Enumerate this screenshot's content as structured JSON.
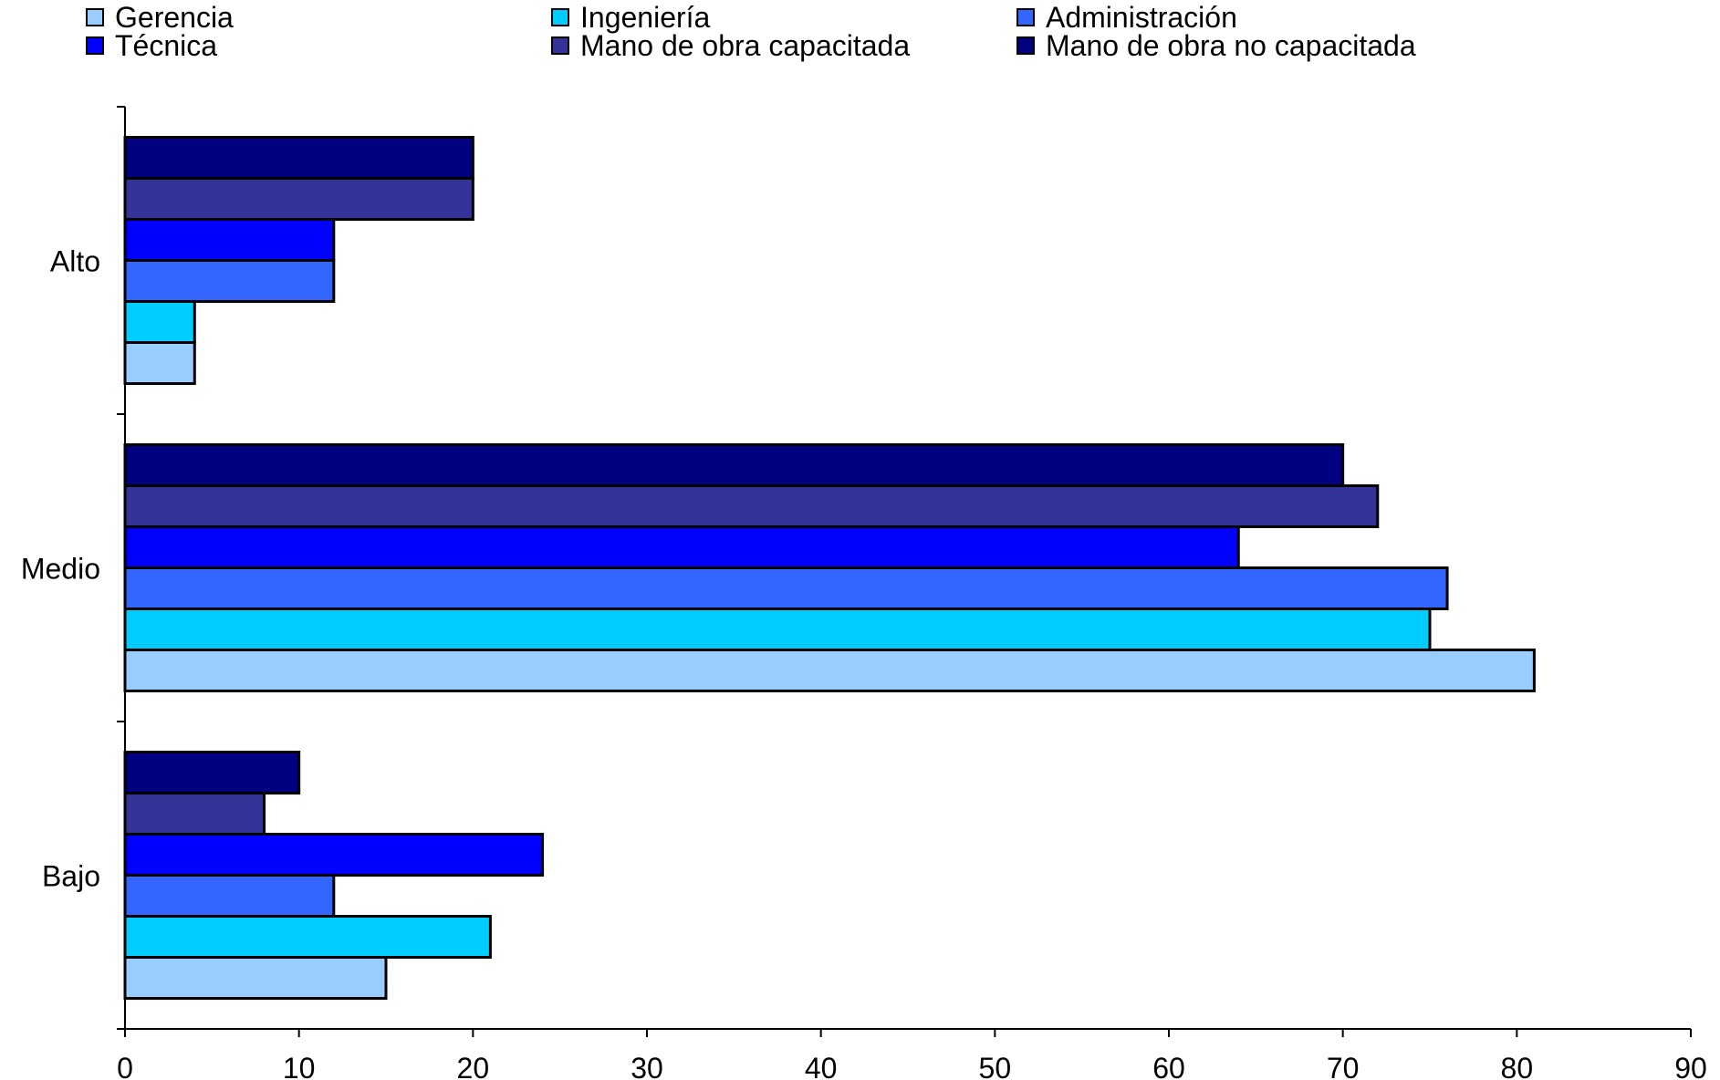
{
  "chart_data": {
    "type": "bar",
    "orientation": "horizontal",
    "title": "",
    "xlabel": "",
    "ylabel": "",
    "categories": [
      "Alto",
      "Medio",
      "Bajo"
    ],
    "series": [
      {
        "name": "Gerencia",
        "color": "#99CCFF",
        "values": [
          4,
          81,
          15
        ]
      },
      {
        "name": "Ingeniería",
        "color": "#00CCFF",
        "values": [
          4,
          75,
          21
        ]
      },
      {
        "name": "Administración",
        "color": "#3366FF",
        "values": [
          12,
          76,
          12
        ]
      },
      {
        "name": "Técnica",
        "color": "#0000FF",
        "values": [
          12,
          64,
          24
        ]
      },
      {
        "name": "Mano de obra capacitada",
        "color": "#333399",
        "values": [
          20,
          72,
          8
        ]
      },
      {
        "name": "Mano de obra no capacitada",
        "color": "#000080",
        "values": [
          20,
          70,
          10
        ]
      }
    ],
    "x_ticks": [
      "0",
      "10",
      "20",
      "30",
      "40",
      "50",
      "60",
      "70",
      "80",
      "90"
    ],
    "xlim": [
      0,
      90
    ],
    "grid": false,
    "legend_position": "top"
  }
}
